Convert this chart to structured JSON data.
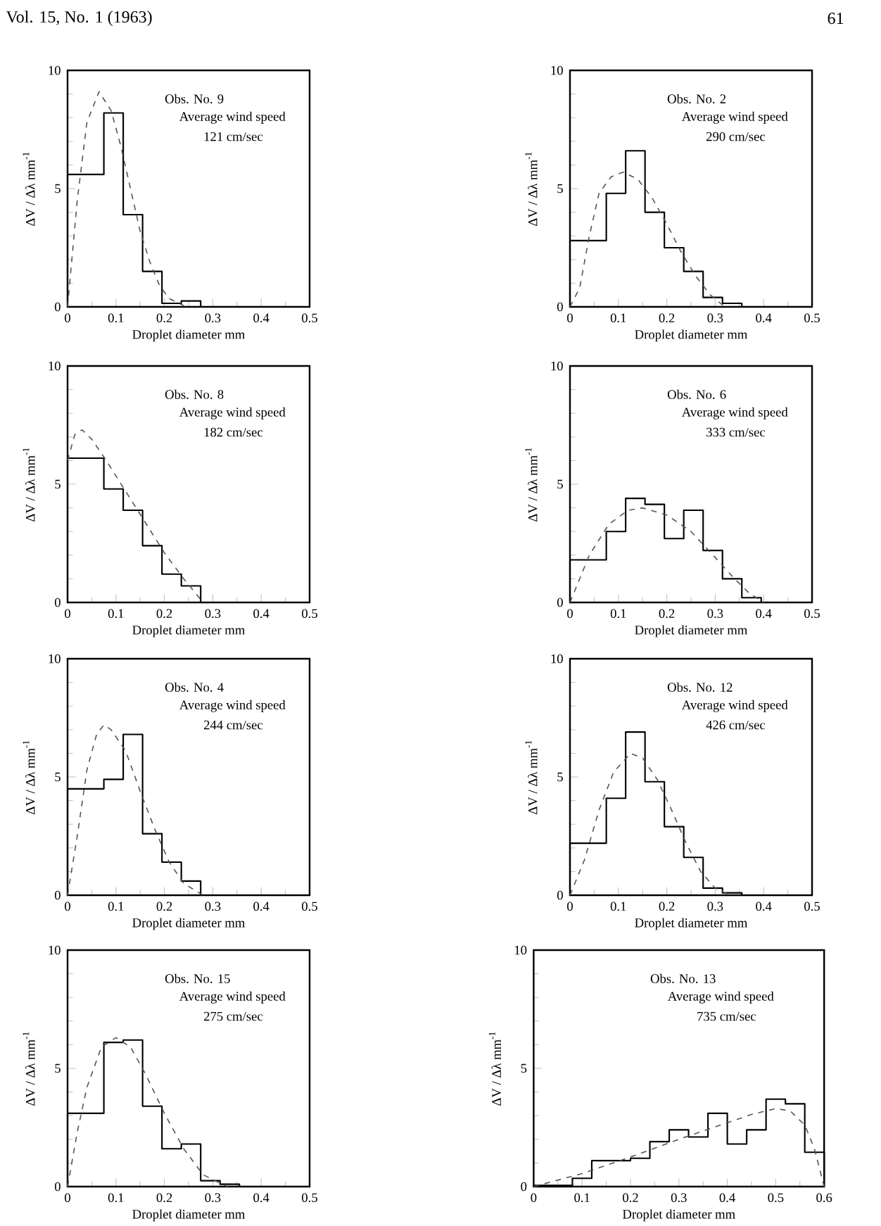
{
  "chart_data": [
    {
      "type": "histogram",
      "xlabel": "Droplet diameter mm",
      "ylabel": "ΔV / Δλ  mm$^{-1}$",
      "xlim": [
        0,
        0.5
      ],
      "ylim": [
        0,
        10
      ],
      "xticks": [
        0,
        0.1,
        0.2,
        0.3,
        0.4,
        0.5
      ],
      "yticks": [
        0,
        5,
        10
      ],
      "annotations": [
        "Obs. No. 9",
        "Average wind speed",
        "121 cm/sec",
        "Vol. 15, No. 1 (1963)"
      ],
      "series": [
        {
          "color": "#000000",
          "bins": [
            0,
            0.075,
            0.115,
            0.155,
            0.195,
            0.235,
            0.275
          ],
          "values": [
            5.6,
            8.2,
            3.9,
            1.5,
            0.15,
            0.25
          ]
        },
        {
          "type": "line",
          "color": "#555555",
          "line_style": "dashed",
          "x": [
            0,
            0.02,
            0.04,
            0.065,
            0.09,
            0.11,
            0.13,
            0.15,
            0.17,
            0.19,
            0.21,
            0.24
          ],
          "values": [
            0,
            4.5,
            7.8,
            9.1,
            8.3,
            6.8,
            5.0,
            3.2,
            1.9,
            0.9,
            0.35,
            0.05
          ]
        }
      ]
    },
    {
      "type": "histogram",
      "xlabel": "Droplet diameter mm",
      "ylabel": "ΔV / Δλ  mm$^{-1}$",
      "xlim": [
        0,
        0.5
      ],
      "ylim": [
        0,
        10
      ],
      "xticks": [
        0,
        0.1,
        0.2,
        0.3,
        0.4,
        0.5
      ],
      "yticks": [
        0,
        5,
        10
      ],
      "annotations": [
        "Obs. No. 2",
        "Average wind speed",
        "290 cm/sec",
        "61"
      ],
      "series": [
        {
          "color": "#000000",
          "bins": [
            0,
            0.075,
            0.115,
            0.155,
            0.195,
            0.235,
            0.275,
            0.315,
            0.355
          ],
          "values": [
            2.8,
            4.8,
            6.6,
            4.0,
            2.5,
            1.5,
            0.4,
            0.15
          ]
        },
        {
          "type": "line",
          "color": "#555555",
          "line_style": "dashed",
          "x": [
            0,
            0.02,
            0.04,
            0.06,
            0.085,
            0.11,
            0.14,
            0.17,
            0.2,
            0.23,
            0.26,
            0.29,
            0.32
          ],
          "values": [
            0,
            0.8,
            3.0,
            4.8,
            5.5,
            5.7,
            5.4,
            4.6,
            3.5,
            2.3,
            1.3,
            0.5,
            0
          ]
        }
      ]
    },
    {
      "type": "histogram",
      "xlabel": "Droplet diameter mm",
      "ylabel": "ΔV / Δλ  mm$^{-1}$",
      "xlim": [
        0,
        0.5
      ],
      "ylim": [
        0,
        10
      ],
      "xticks": [
        0,
        0.1,
        0.2,
        0.3,
        0.4,
        0.5
      ],
      "yticks": [
        0,
        5,
        10
      ],
      "annotations": [
        "Obs. No. 8",
        "Average wind speed",
        "182 cm/sec"
      ],
      "series": [
        {
          "color": "#000000",
          "bins": [
            0,
            0.075,
            0.115,
            0.155,
            0.195,
            0.235,
            0.275
          ],
          "values": [
            6.1,
            4.8,
            3.9,
            2.4,
            1.2,
            0.7
          ]
        },
        {
          "type": "line",
          "color": "#555555",
          "line_style": "dashed",
          "x": [
            0,
            0.015,
            0.03,
            0.05,
            0.08,
            0.12,
            0.16,
            0.2,
            0.24,
            0.28
          ],
          "values": [
            6.0,
            7.1,
            7.3,
            6.9,
            6.0,
            4.7,
            3.4,
            2.1,
            1.0,
            0
          ]
        }
      ]
    },
    {
      "type": "histogram",
      "xlabel": "Droplet diameter mm",
      "ylabel": "ΔV / Δλ  mm$^{-1}$",
      "xlim": [
        0,
        0.5
      ],
      "ylim": [
        0,
        10
      ],
      "xticks": [
        0,
        0.1,
        0.2,
        0.3,
        0.4,
        0.5
      ],
      "yticks": [
        0,
        5,
        10
      ],
      "annotations": [
        "Obs. No. 6",
        "Average wind speed",
        "333 cm/sec"
      ],
      "series": [
        {
          "color": "#000000",
          "bins": [
            0,
            0.075,
            0.115,
            0.155,
            0.195,
            0.235,
            0.275,
            0.315,
            0.355,
            0.395
          ],
          "values": [
            1.8,
            3.0,
            4.4,
            4.15,
            2.7,
            3.9,
            2.2,
            1.0,
            0.2
          ]
        },
        {
          "type": "line",
          "color": "#555555",
          "line_style": "dashed",
          "x": [
            0,
            0.04,
            0.08,
            0.12,
            0.15,
            0.2,
            0.25,
            0.3,
            0.34,
            0.37,
            0.4
          ],
          "values": [
            0,
            2.0,
            3.3,
            3.9,
            4.0,
            3.7,
            3.0,
            1.9,
            1.0,
            0.4,
            0
          ]
        }
      ]
    },
    {
      "type": "histogram",
      "xlabel": "Droplet diameter mm",
      "ylabel": "ΔV / Δλ  mm$^{-1}$",
      "xlim": [
        0,
        0.5
      ],
      "ylim": [
        0,
        10
      ],
      "xticks": [
        0,
        0.1,
        0.2,
        0.3,
        0.4,
        0.5
      ],
      "yticks": [
        0,
        5,
        10
      ],
      "annotations": [
        "Obs. No. 4",
        "Average wind speed",
        "244 cm/sec"
      ],
      "series": [
        {
          "color": "#000000",
          "bins": [
            0,
            0.075,
            0.115,
            0.155,
            0.195,
            0.235,
            0.275
          ],
          "values": [
            4.5,
            4.9,
            6.8,
            2.6,
            1.4,
            0.6
          ]
        },
        {
          "type": "line",
          "color": "#555555",
          "line_style": "dashed",
          "x": [
            0,
            0.02,
            0.04,
            0.06,
            0.075,
            0.09,
            0.12,
            0.15,
            0.18,
            0.21,
            0.24,
            0.28
          ],
          "values": [
            0,
            2.5,
            5.3,
            6.8,
            7.2,
            7.0,
            6.1,
            4.4,
            2.8,
            1.4,
            0.5,
            0
          ]
        }
      ]
    },
    {
      "type": "histogram",
      "xlabel": "Droplet diameter mm",
      "ylabel": "ΔV / Δλ  mm$^{-1}$",
      "xlim": [
        0,
        0.5
      ],
      "ylim": [
        0,
        10
      ],
      "xticks": [
        0,
        0.1,
        0.2,
        0.3,
        0.4,
        0.5
      ],
      "yticks": [
        0,
        5,
        10
      ],
      "annotations": [
        "Obs. No. 12",
        "Average wind speed",
        "426 cm/sec"
      ],
      "series": [
        {
          "color": "#000000",
          "bins": [
            0,
            0.075,
            0.115,
            0.155,
            0.195,
            0.235,
            0.275,
            0.315,
            0.355
          ],
          "values": [
            2.2,
            4.1,
            6.9,
            4.8,
            2.9,
            1.6,
            0.3,
            0.1
          ]
        },
        {
          "type": "line",
          "color": "#555555",
          "line_style": "dashed",
          "x": [
            0,
            0.03,
            0.06,
            0.09,
            0.125,
            0.15,
            0.18,
            0.21,
            0.24,
            0.27,
            0.3,
            0.33
          ],
          "values": [
            0,
            1.5,
            3.6,
            5.2,
            6.0,
            5.8,
            4.9,
            3.6,
            2.2,
            1.0,
            0.3,
            0
          ]
        }
      ]
    },
    {
      "type": "histogram",
      "xlabel": "Droplet diameter mm",
      "ylabel": "ΔV / Δλ  mm$^{-1}$",
      "xlim": [
        0,
        0.5
      ],
      "ylim": [
        0,
        10
      ],
      "xticks": [
        0,
        0.1,
        0.2,
        0.3,
        0.4,
        0.5
      ],
      "yticks": [
        0,
        5,
        10
      ],
      "annotations": [
        "Obs. No. 15",
        "Average wind speed",
        "275 cm/sec"
      ],
      "series": [
        {
          "color": "#000000",
          "bins": [
            0,
            0.075,
            0.115,
            0.155,
            0.195,
            0.235,
            0.275,
            0.315,
            0.355
          ],
          "values": [
            3.1,
            6.1,
            6.2,
            3.4,
            1.6,
            1.8,
            0.25,
            0.1
          ]
        },
        {
          "type": "line",
          "color": "#555555",
          "line_style": "dashed",
          "x": [
            0,
            0.02,
            0.04,
            0.07,
            0.1,
            0.13,
            0.16,
            0.2,
            0.24,
            0.28,
            0.33
          ],
          "values": [
            0,
            2.3,
            4.2,
            5.9,
            6.3,
            5.9,
            4.8,
            3.1,
            1.6,
            0.5,
            0
          ]
        }
      ]
    },
    {
      "type": "histogram",
      "xlabel": "Droplet diameter mm",
      "ylabel": "ΔV / Δλ  mm$^{-1}$",
      "xlim": [
        0,
        0.6
      ],
      "ylim": [
        0,
        10
      ],
      "xticks": [
        0,
        0.1,
        0.2,
        0.3,
        0.4,
        0.5,
        0.6
      ],
      "yticks": [
        0,
        5,
        10
      ],
      "annotations": [
        "Obs. No. 13",
        "Average wind speed",
        "735 cm/sec"
      ],
      "series": [
        {
          "color": "#000000",
          "bins": [
            0,
            0.08,
            0.12,
            0.16,
            0.2,
            0.24,
            0.28,
            0.32,
            0.36,
            0.4,
            0.44,
            0.48,
            0.52,
            0.56,
            0.6
          ],
          "values": [
            0.05,
            0.35,
            1.1,
            1.1,
            1.2,
            1.9,
            2.4,
            2.1,
            3.1,
            1.8,
            2.4,
            3.7,
            3.5,
            1.45
          ]
        },
        {
          "type": "line",
          "color": "#555555",
          "line_style": "dashed",
          "x": [
            0,
            0.1,
            0.2,
            0.3,
            0.4,
            0.45,
            0.5,
            0.53,
            0.56,
            0.58,
            0.6
          ],
          "values": [
            0,
            0.55,
            1.25,
            2.0,
            2.7,
            3.05,
            3.3,
            3.2,
            2.6,
            1.6,
            0
          ]
        }
      ]
    }
  ]
}
